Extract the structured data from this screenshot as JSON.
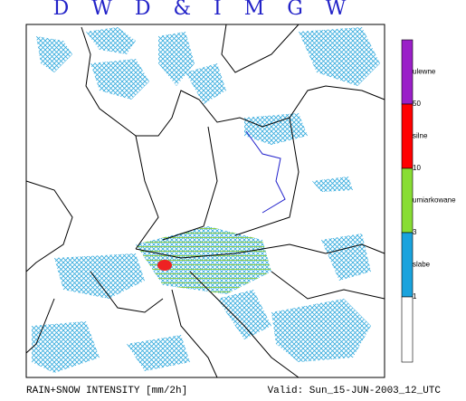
{
  "header": {
    "title": "D W D & I M G W"
  },
  "legend": {
    "bands": [
      {
        "label": "ulewne",
        "color": "#9a1fc8"
      },
      {
        "label": "silne",
        "color": "#ff0000"
      },
      {
        "label": "umiarkowane",
        "color": "#88dd33"
      },
      {
        "label": "slabe",
        "color": "#1aa3dd"
      }
    ],
    "thresholds": [
      "50",
      "10",
      "3",
      "1"
    ]
  },
  "footer": {
    "caption": "RAIN+SNOW INTENSITY [mm/2h]",
    "valid": "Valid: Sun_15-JUN-2003_12_UTC"
  }
}
